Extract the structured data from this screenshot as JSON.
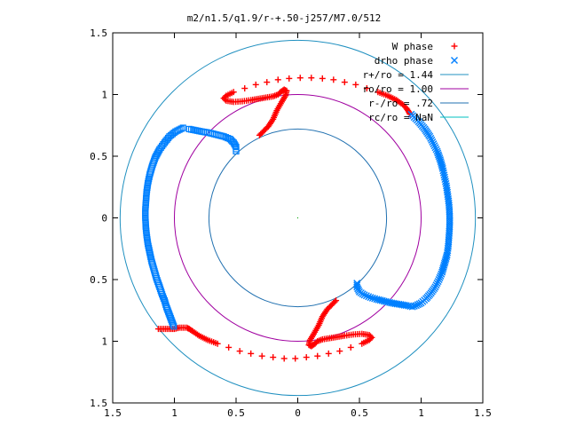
{
  "chart_data": {
    "type": "scatter",
    "title": "m2/n1.5/q1.9/r-+.50-j257/M7.0/512",
    "xlabel": "",
    "ylabel": "",
    "xlim": [
      -1.5,
      1.5
    ],
    "ylim": [
      -1.5,
      1.5
    ],
    "x_tick_values": [
      -1.5,
      -1,
      -0.5,
      0,
      0.5,
      1,
      1.5
    ],
    "x_tick_labels": [
      "1.5",
      "1",
      "0.5",
      "0",
      "0.5",
      "1",
      "1.5"
    ],
    "y_tick_values": [
      1.5,
      1,
      0.5,
      0,
      -0.5,
      -1,
      -1.5
    ],
    "y_tick_labels": [
      "1.5",
      "1",
      "0.5",
      "0",
      "0.5",
      "1",
      "1.5"
    ],
    "grid": false,
    "legend_position": "top-right",
    "series": [
      {
        "name": "W phase",
        "marker": "plus",
        "color": "#ff0000",
        "points": [
          [
            0.11,
            1.135
          ],
          [
            0.02,
            1.135
          ],
          [
            -0.07,
            1.13
          ],
          [
            -0.16,
            1.12
          ],
          [
            -0.25,
            1.1
          ],
          [
            -0.34,
            1.08
          ],
          [
            -0.43,
            1.05
          ],
          [
            -0.52,
            1.02
          ],
          [
            -0.58,
            0.99
          ],
          [
            -0.6,
            0.97
          ],
          [
            -0.58,
            0.95
          ],
          [
            -0.52,
            0.94
          ],
          [
            -0.45,
            0.945
          ],
          [
            -0.38,
            0.955
          ],
          [
            -0.32,
            0.965
          ],
          [
            -0.26,
            0.975
          ],
          [
            -0.2,
            0.985
          ],
          [
            -0.16,
            1.0
          ],
          [
            -0.14,
            1.02
          ],
          [
            -0.11,
            1.04
          ],
          [
            -0.09,
            1.03
          ],
          [
            -0.1,
            0.99
          ],
          [
            -0.13,
            0.94
          ],
          [
            -0.17,
            0.87
          ],
          [
            -0.2,
            0.8
          ],
          [
            -0.24,
            0.74
          ],
          [
            -0.28,
            0.7
          ],
          [
            -0.31,
            0.67
          ],
          [
            0.2,
            1.13
          ],
          [
            0.29,
            1.12
          ],
          [
            0.38,
            1.1
          ],
          [
            0.47,
            1.08
          ],
          [
            0.56,
            1.05
          ],
          [
            0.65,
            1.02
          ],
          [
            0.73,
            0.99
          ],
          [
            0.8,
            0.955
          ],
          [
            0.85,
            0.92
          ],
          [
            0.88,
            0.89
          ],
          [
            0.9,
            0.86
          ],
          [
            0.91,
            0.84
          ],
          [
            -0.11,
            -1.14
          ],
          [
            -0.02,
            -1.14
          ],
          [
            0.07,
            -1.13
          ],
          [
            0.16,
            -1.12
          ],
          [
            0.25,
            -1.1
          ],
          [
            0.34,
            -1.08
          ],
          [
            0.43,
            -1.05
          ],
          [
            0.52,
            -1.02
          ],
          [
            0.58,
            -0.99
          ],
          [
            0.6,
            -0.97
          ],
          [
            0.58,
            -0.95
          ],
          [
            0.52,
            -0.94
          ],
          [
            0.45,
            -0.945
          ],
          [
            0.38,
            -0.955
          ],
          [
            0.32,
            -0.965
          ],
          [
            0.26,
            -0.975
          ],
          [
            0.2,
            -0.985
          ],
          [
            0.16,
            -1.0
          ],
          [
            0.14,
            -1.02
          ],
          [
            0.11,
            -1.04
          ],
          [
            0.09,
            -1.03
          ],
          [
            0.1,
            -0.99
          ],
          [
            0.13,
            -0.94
          ],
          [
            0.17,
            -0.87
          ],
          [
            0.2,
            -0.8
          ],
          [
            0.24,
            -0.74
          ],
          [
            0.28,
            -0.7
          ],
          [
            0.31,
            -0.67
          ],
          [
            -0.2,
            -1.13
          ],
          [
            -0.29,
            -1.12
          ],
          [
            -0.38,
            -1.1
          ],
          [
            -0.47,
            -1.08
          ],
          [
            -0.56,
            -1.05
          ],
          [
            -0.65,
            -1.02
          ],
          [
            -0.73,
            -0.99
          ],
          [
            -0.8,
            -0.955
          ],
          [
            -0.85,
            -0.92
          ],
          [
            -0.88,
            -0.9
          ],
          [
            -0.9,
            -0.89
          ],
          [
            -0.93,
            -0.89
          ],
          [
            -0.96,
            -0.89
          ],
          [
            -1.0,
            -0.9
          ],
          [
            -1.04,
            -0.9
          ],
          [
            -1.1,
            -0.9
          ],
          [
            -1.13,
            -0.9
          ]
        ]
      },
      {
        "name": "drho phase",
        "marker": "cross",
        "color": "#0080ff",
        "points": [
          [
            0.92,
            0.84
          ],
          [
            0.98,
            0.78
          ],
          [
            1.03,
            0.72
          ],
          [
            1.07,
            0.66
          ],
          [
            1.1,
            0.6
          ],
          [
            1.13,
            0.54
          ],
          [
            1.155,
            0.47
          ],
          [
            1.175,
            0.4
          ],
          [
            1.19,
            0.33
          ],
          [
            1.205,
            0.26
          ],
          [
            1.215,
            0.19
          ],
          [
            1.225,
            0.12
          ],
          [
            1.23,
            0.05
          ],
          [
            1.232,
            -0.02
          ],
          [
            1.23,
            -0.09
          ],
          [
            1.225,
            -0.16
          ],
          [
            1.22,
            -0.23
          ],
          [
            1.21,
            -0.3
          ],
          [
            1.19,
            -0.37
          ],
          [
            1.17,
            -0.44
          ],
          [
            1.145,
            -0.5
          ],
          [
            1.115,
            -0.56
          ],
          [
            1.08,
            -0.61
          ],
          [
            1.04,
            -0.655
          ],
          [
            1.0,
            -0.69
          ],
          [
            0.96,
            -0.71
          ],
          [
            0.93,
            -0.72
          ],
          [
            0.88,
            -0.71
          ],
          [
            0.82,
            -0.7
          ],
          [
            0.76,
            -0.69
          ],
          [
            0.7,
            -0.675
          ],
          [
            0.64,
            -0.66
          ],
          [
            0.59,
            -0.645
          ],
          [
            0.54,
            -0.625
          ],
          [
            0.5,
            -0.6
          ],
          [
            0.48,
            -0.56
          ],
          [
            0.48,
            -0.53
          ]
        ]
      },
      {
        "name": "",
        "marker": "square-open",
        "color": "#0080ff",
        "points": [
          [
            -0.93,
            0.73
          ],
          [
            -0.99,
            0.7
          ],
          [
            -1.04,
            0.66
          ],
          [
            -1.08,
            0.61
          ],
          [
            -1.12,
            0.555
          ],
          [
            -1.155,
            0.49
          ],
          [
            -1.18,
            0.42
          ],
          [
            -1.2,
            0.35
          ],
          [
            -1.215,
            0.28
          ],
          [
            -1.225,
            0.21
          ],
          [
            -1.23,
            0.14
          ],
          [
            -1.235,
            0.07
          ],
          [
            -1.235,
            0.0
          ],
          [
            -1.232,
            -0.07
          ],
          [
            -1.225,
            -0.14
          ],
          [
            -1.215,
            -0.21
          ],
          [
            -1.2,
            -0.28
          ],
          [
            -1.185,
            -0.35
          ],
          [
            -1.165,
            -0.42
          ],
          [
            -1.145,
            -0.49
          ],
          [
            -1.12,
            -0.56
          ],
          [
            -1.1,
            -0.62
          ],
          [
            -1.08,
            -0.67
          ],
          [
            -1.065,
            -0.72
          ],
          [
            -1.05,
            -0.76
          ],
          [
            -1.035,
            -0.8
          ],
          [
            -1.02,
            -0.84
          ],
          [
            -1.005,
            -0.88
          ],
          [
            -0.88,
            0.72
          ],
          [
            -0.83,
            0.71
          ],
          [
            -0.78,
            0.7
          ],
          [
            -0.72,
            0.69
          ],
          [
            -0.66,
            0.675
          ],
          [
            -0.6,
            0.66
          ],
          [
            -0.55,
            0.64
          ],
          [
            -0.52,
            0.61
          ],
          [
            -0.5,
            0.575
          ],
          [
            -0.5,
            0.54
          ]
        ]
      }
    ],
    "circles": [
      {
        "name": "r+/ro = 1.44",
        "radius": 1.44,
        "color": "#2090c0"
      },
      {
        "name": "ro/ro = 1.00",
        "radius": 1.0,
        "color": "#a000a0"
      },
      {
        "name": "r-/ro = .72",
        "radius": 0.72,
        "color": "#2070b0"
      },
      {
        "name": "rc/ro = NaN",
        "radius": null,
        "color": "#00c0c0"
      }
    ]
  }
}
